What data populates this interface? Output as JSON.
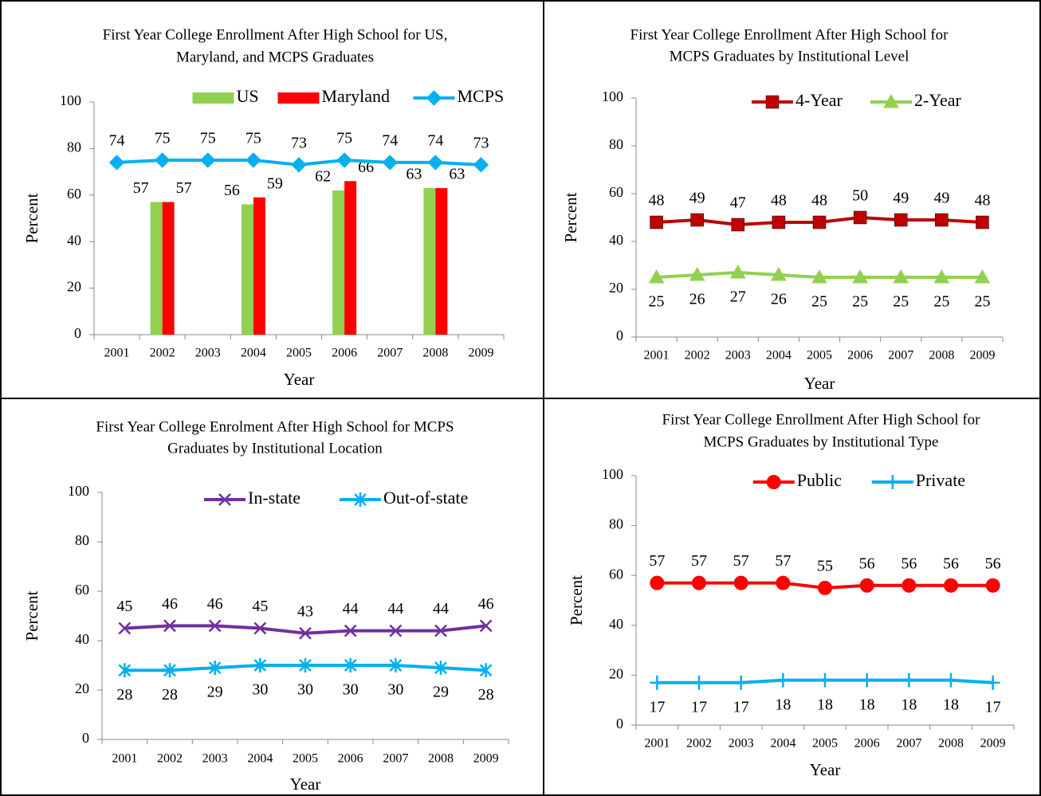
{
  "chart_data": [
    {
      "type": "bar",
      "title": [
        "First Year College Enrollment After High School for US,",
        "Maryland, and MCPS Graduates"
      ],
      "x_label": "Year",
      "y_label": "Percent",
      "categories": [
        "2001",
        "2002",
        "2003",
        "2004",
        "2005",
        "2006",
        "2007",
        "2008",
        "2009"
      ],
      "ylim": [
        0,
        100
      ],
      "yticks": [
        0,
        20,
        40,
        60,
        80,
        100
      ],
      "series": [
        {
          "name": "US",
          "type": "bar",
          "color": "#92d050",
          "values": [
            null,
            57,
            null,
            56,
            null,
            62,
            null,
            63,
            null
          ]
        },
        {
          "name": "Maryland",
          "type": "bar",
          "color": "#ff0000",
          "values": [
            null,
            57,
            null,
            59,
            null,
            66,
            null,
            63,
            null
          ]
        },
        {
          "name": "MCPS",
          "type": "line",
          "marker": "diamond",
          "color": "#00b0f0",
          "values": [
            74,
            75,
            75,
            75,
            73,
            75,
            74,
            74,
            73
          ]
        }
      ]
    },
    {
      "type": "line",
      "title": [
        "First Year College Enrollment After High School for",
        "MCPS Graduates by Institutional Level"
      ],
      "x_label": "Year",
      "y_label": "Percent",
      "categories": [
        "2001",
        "2002",
        "2003",
        "2004",
        "2005",
        "2006",
        "2007",
        "2008",
        "2009"
      ],
      "ylim": [
        0,
        100
      ],
      "yticks": [
        0,
        20,
        40,
        60,
        80,
        100
      ],
      "series": [
        {
          "name": "4-Year",
          "marker": "square",
          "color": "#c00000",
          "values": [
            48,
            49,
            47,
            48,
            48,
            50,
            49,
            49,
            48
          ]
        },
        {
          "name": "2-Year",
          "marker": "triangle",
          "color": "#92d050",
          "values": [
            25,
            26,
            27,
            26,
            25,
            25,
            25,
            25,
            25
          ]
        }
      ]
    },
    {
      "type": "line",
      "title": [
        "First Year College Enrolment After High School for MCPS",
        "Graduates by Institutional Location"
      ],
      "x_label": "Year",
      "y_label": "Percent",
      "categories": [
        "2001",
        "2002",
        "2003",
        "2004",
        "2005",
        "2006",
        "2007",
        "2008",
        "2009"
      ],
      "ylim": [
        0,
        100
      ],
      "yticks": [
        0,
        20,
        40,
        60,
        80,
        100
      ],
      "series": [
        {
          "name": "In-state",
          "marker": "x",
          "color": "#7030a0",
          "values": [
            45,
            46,
            46,
            45,
            43,
            44,
            44,
            44,
            46
          ]
        },
        {
          "name": "Out-of-state",
          "marker": "asterisk",
          "color": "#00b0f0",
          "values": [
            28,
            28,
            29,
            30,
            30,
            30,
            30,
            29,
            28
          ]
        }
      ]
    },
    {
      "type": "line",
      "title": [
        "First Year College Enrollment After High School for",
        "MCPS Graduates by Institutional Type"
      ],
      "x_label": "Year",
      "y_label": "Percent",
      "categories": [
        "2001",
        "2002",
        "2003",
        "2004",
        "2005",
        "2006",
        "2007",
        "2008",
        "2009"
      ],
      "ylim": [
        0,
        100
      ],
      "yticks": [
        0,
        20,
        40,
        60,
        80,
        100
      ],
      "series": [
        {
          "name": "Public",
          "marker": "circle",
          "color": "#ff0000",
          "values": [
            57,
            57,
            57,
            57,
            55,
            56,
            56,
            56,
            56
          ]
        },
        {
          "name": "Private",
          "marker": "plus",
          "color": "#00b0f0",
          "values": [
            17,
            17,
            17,
            18,
            18,
            18,
            18,
            18,
            17
          ]
        }
      ]
    }
  ]
}
